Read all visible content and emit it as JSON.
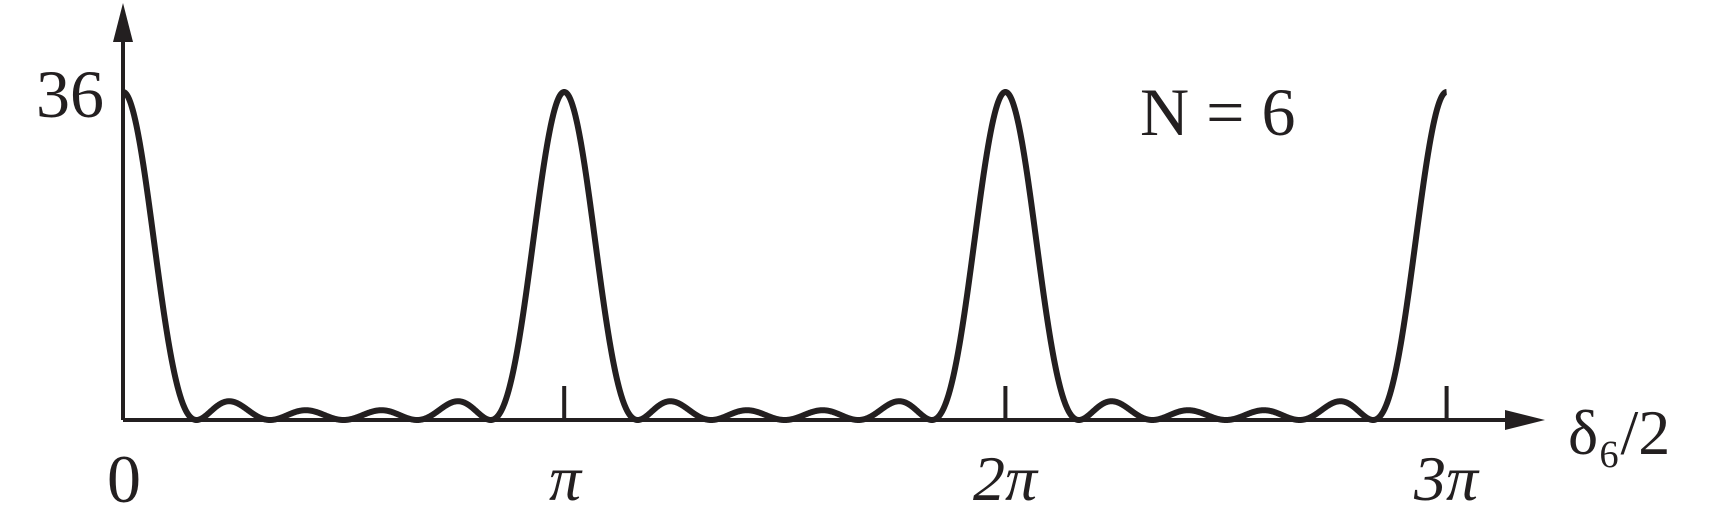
{
  "chart_data": {
    "type": "line",
    "title": "",
    "xlabel": "δ₆/2",
    "ylabel": "",
    "annotation": "N = 6",
    "N": 6,
    "function": "sin^2(N x) / sin^2(x)",
    "xlim_pi_units": [
      0,
      3
    ],
    "ylim": [
      0,
      36
    ],
    "x_ticks": [
      {
        "value_pi": 0,
        "label": "0"
      },
      {
        "value_pi": 1,
        "label": "π"
      },
      {
        "value_pi": 2,
        "label": "2π"
      },
      {
        "value_pi": 3,
        "label": "3π"
      }
    ],
    "y_ticks": [
      {
        "value": 36,
        "label": "36"
      }
    ],
    "peaks": [
      {
        "x_pi": 0,
        "y": 36
      },
      {
        "x_pi": 1,
        "y": 36
      },
      {
        "x_pi": 2,
        "y": 36
      },
      {
        "x_pi": 3,
        "y": 36
      }
    ],
    "grid": false,
    "legend": "none",
    "line_color": "#231f20"
  }
}
